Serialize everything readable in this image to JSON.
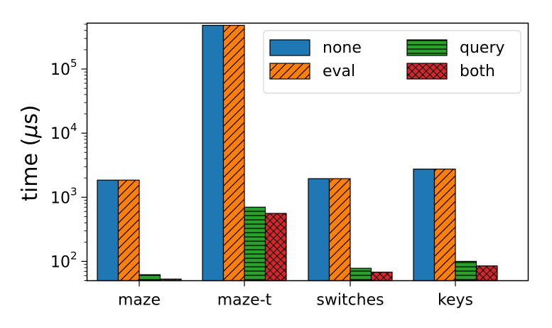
{
  "chart_data": {
    "type": "bar",
    "title": "",
    "xlabel": "",
    "ylabel": "time (μs)",
    "yscale": "log",
    "ylim": [
      50,
      520000
    ],
    "yticks": [
      {
        "value": 100,
        "base": "10",
        "exp": "2"
      },
      {
        "value": 1000,
        "base": "10",
        "exp": "3"
      },
      {
        "value": 10000,
        "base": "10",
        "exp": "4"
      },
      {
        "value": 100000,
        "base": "10",
        "exp": "5"
      }
    ],
    "categories": [
      "maze",
      "maze-t",
      "switches",
      "keys"
    ],
    "series": [
      {
        "name": "none",
        "color": "#1f77b4",
        "hatch": "none",
        "values": [
          1850,
          480000,
          1950,
          2750
        ]
      },
      {
        "name": "eval",
        "color": "#ff7f0e",
        "hatch": "diagonal",
        "values": [
          1850,
          480000,
          1950,
          2750
        ]
      },
      {
        "name": "query",
        "color": "#2ca02c",
        "hatch": "horizontal",
        "values": [
          62,
          700,
          78,
          100
        ]
      },
      {
        "name": "both",
        "color": "#d62728",
        "hatch": "crosshatch",
        "values": [
          53,
          560,
          68,
          85
        ]
      }
    ],
    "legend": {
      "position": "top-right",
      "columns": 2
    }
  }
}
